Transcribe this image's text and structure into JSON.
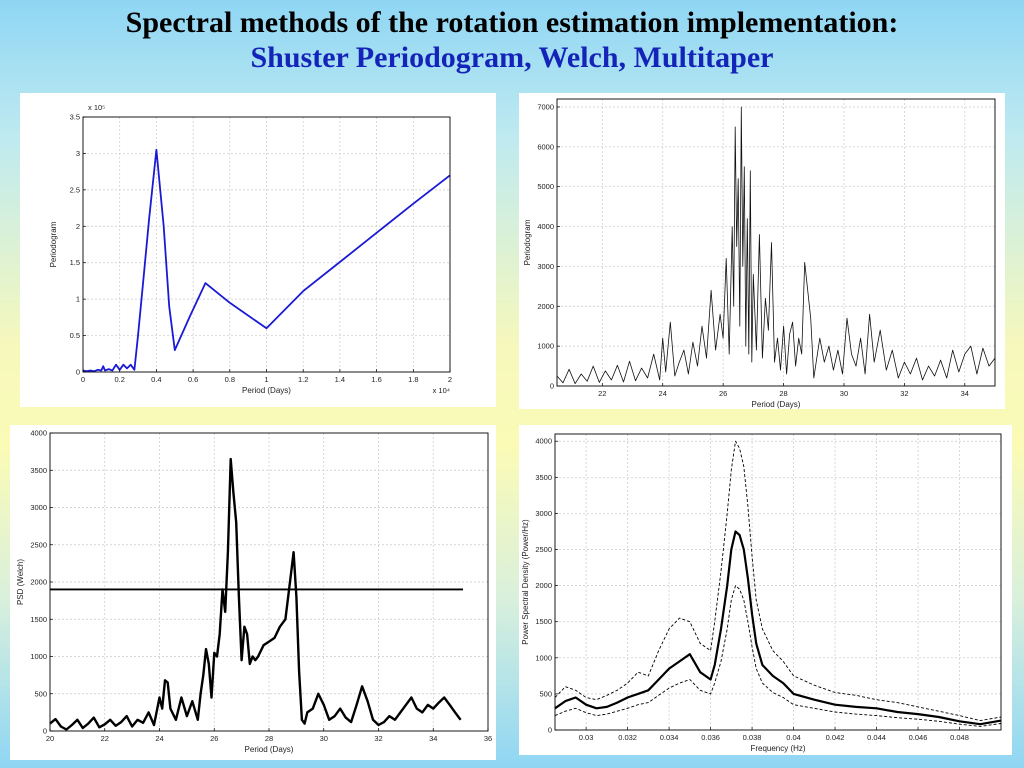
{
  "header": {
    "title": "Spectral methods of the rotation estimation implementation:",
    "subtitle": "Shuster Periodogram, Welch, Multitaper"
  },
  "chart_data": [
    {
      "id": "p1",
      "type": "line",
      "xlabel": "Period (Days)",
      "ylabel": "Periodogram",
      "x_multiplier": "x 10⁴",
      "y_multiplier": "x 10⁵",
      "xlim": [
        0,
        2
      ],
      "ylim": [
        0,
        3.5
      ],
      "xticks": [
        0,
        0.2,
        0.4,
        0.6,
        0.8,
        1,
        1.2,
        1.4,
        1.6,
        1.8,
        2
      ],
      "yticks": [
        0,
        0.5,
        1,
        1.5,
        2,
        2.5,
        3,
        3.5
      ],
      "grid": true,
      "series": [
        {
          "color": "#1a1ad6",
          "line_width": 1.8,
          "x": [
            0.0,
            0.02,
            0.04,
            0.06,
            0.08,
            0.1,
            0.11,
            0.12,
            0.14,
            0.16,
            0.18,
            0.2,
            0.22,
            0.24,
            0.26,
            0.28,
            0.3,
            0.33,
            0.36,
            0.4,
            0.44,
            0.47,
            0.5,
            0.58,
            0.667,
            0.8,
            1.0,
            1.2,
            1.4,
            1.6,
            1.8,
            2.0
          ],
          "y": [
            0.02,
            0.01,
            0.02,
            0.01,
            0.03,
            0.02,
            0.08,
            0.02,
            0.04,
            0.02,
            0.1,
            0.03,
            0.1,
            0.05,
            0.1,
            0.03,
            0.5,
            1.3,
            2.1,
            3.05,
            2.0,
            0.9,
            0.3,
            0.75,
            1.22,
            0.95,
            0.6,
            1.11,
            1.51,
            1.91,
            2.31,
            2.7
          ]
        }
      ]
    },
    {
      "id": "p2",
      "type": "line",
      "xlabel": "Period (Days)",
      "ylabel": "Periodogram",
      "xlim": [
        20.5,
        35
      ],
      "ylim": [
        0,
        7200
      ],
      "xticks": [
        22,
        24,
        26,
        28,
        30,
        32,
        34
      ],
      "yticks": [
        0,
        1000,
        2000,
        3000,
        4000,
        5000,
        6000,
        7000
      ],
      "grid": true,
      "series": [
        {
          "color": "#111111",
          "line_width": 0.8,
          "x": [
            20.5,
            20.7,
            20.9,
            21.1,
            21.3,
            21.5,
            21.7,
            21.9,
            22.1,
            22.3,
            22.5,
            22.7,
            22.9,
            23.1,
            23.3,
            23.5,
            23.7,
            23.9,
            24.0,
            24.1,
            24.25,
            24.4,
            24.55,
            24.7,
            24.85,
            25.0,
            25.15,
            25.3,
            25.45,
            25.6,
            25.75,
            25.9,
            26.0,
            26.1,
            26.2,
            26.3,
            26.35,
            26.4,
            26.45,
            26.5,
            26.55,
            26.6,
            26.65,
            26.7,
            26.75,
            26.8,
            26.85,
            26.9,
            26.95,
            27.0,
            27.1,
            27.2,
            27.3,
            27.4,
            27.5,
            27.6,
            27.7,
            27.8,
            27.9,
            28.0,
            28.1,
            28.2,
            28.3,
            28.4,
            28.5,
            28.6,
            28.7,
            28.8,
            28.9,
            29.0,
            29.1,
            29.2,
            29.35,
            29.5,
            29.65,
            29.8,
            29.95,
            30.1,
            30.25,
            30.4,
            30.55,
            30.7,
            30.85,
            31.0,
            31.2,
            31.4,
            31.6,
            31.8,
            32.0,
            32.2,
            32.4,
            32.6,
            32.8,
            33.0,
            33.2,
            33.4,
            33.6,
            33.8,
            34.0,
            34.2,
            34.4,
            34.6,
            34.8,
            35.0
          ],
          "y": [
            250,
            80,
            420,
            60,
            300,
            120,
            500,
            90,
            380,
            150,
            520,
            100,
            620,
            130,
            450,
            200,
            800,
            150,
            1200,
            350,
            1600,
            250,
            600,
            900,
            300,
            1100,
            500,
            1500,
            700,
            2400,
            900,
            1800,
            1200,
            3200,
            800,
            4000,
            2000,
            6500,
            3500,
            5200,
            1500,
            7000,
            3000,
            5500,
            1000,
            4200,
            800,
            5400,
            600,
            2800,
            900,
            3800,
            700,
            2200,
            1400,
            3600,
            600,
            1200,
            400,
            1500,
            300,
            1300,
            1600,
            500,
            1200,
            800,
            3100,
            2400,
            1700,
            200,
            700,
            1200,
            600,
            1000,
            400,
            900,
            300,
            1700,
            800,
            500,
            1200,
            300,
            1800,
            600,
            1400,
            400,
            900,
            200,
            600,
            300,
            700,
            150,
            500,
            250,
            650,
            200,
            900,
            350,
            800,
            1000,
            300,
            950,
            500,
            700
          ]
        }
      ]
    },
    {
      "id": "p3",
      "type": "line",
      "xlabel": "Period (Days)",
      "ylabel": "PSD (Welch)",
      "xlim": [
        20,
        36
      ],
      "ylim": [
        0,
        4000
      ],
      "xticks": [
        20,
        22,
        24,
        26,
        28,
        30,
        32,
        34,
        36
      ],
      "yticks": [
        0,
        500,
        1000,
        1500,
        2000,
        2500,
        3000,
        3500,
        4000
      ],
      "grid": true,
      "threshold": 1900,
      "series": [
        {
          "color": "#000000",
          "line_width": 2.4,
          "x": [
            20.0,
            20.2,
            20.4,
            20.6,
            20.8,
            21.0,
            21.2,
            21.4,
            21.6,
            21.8,
            22.0,
            22.2,
            22.4,
            22.6,
            22.8,
            23.0,
            23.2,
            23.4,
            23.6,
            23.8,
            24.0,
            24.1,
            24.2,
            24.3,
            24.4,
            24.6,
            24.8,
            25.0,
            25.2,
            25.4,
            25.5,
            25.6,
            25.7,
            25.8,
            25.9,
            26.0,
            26.1,
            26.2,
            26.3,
            26.4,
            26.5,
            26.6,
            26.7,
            26.8,
            26.9,
            27.0,
            27.1,
            27.2,
            27.3,
            27.4,
            27.5,
            27.6,
            27.8,
            28.0,
            28.2,
            28.4,
            28.6,
            28.8,
            28.9,
            29.0,
            29.1,
            29.2,
            29.3,
            29.4,
            29.6,
            29.8,
            30.0,
            30.2,
            30.4,
            30.6,
            30.8,
            31.0,
            31.2,
            31.4,
            31.6,
            31.8,
            32.0,
            32.2,
            32.4,
            32.6,
            32.8,
            33.0,
            33.2,
            33.4,
            33.6,
            33.8,
            34.0,
            34.2,
            34.4,
            34.6,
            34.8,
            35.0
          ],
          "y": [
            100,
            160,
            60,
            20,
            80,
            150,
            40,
            100,
            180,
            50,
            90,
            150,
            70,
            120,
            200,
            60,
            150,
            110,
            250,
            80,
            450,
            300,
            680,
            650,
            300,
            150,
            450,
            200,
            400,
            150,
            500,
            750,
            1100,
            900,
            450,
            1050,
            1000,
            1300,
            1900,
            1600,
            2400,
            3650,
            3200,
            2800,
            1800,
            950,
            1400,
            1300,
            900,
            1000,
            950,
            1000,
            1150,
            1200,
            1250,
            1400,
            1500,
            2100,
            2400,
            1800,
            800,
            150,
            100,
            250,
            300,
            500,
            350,
            150,
            200,
            300,
            180,
            120,
            350,
            600,
            400,
            150,
            80,
            120,
            200,
            150,
            250,
            350,
            450,
            300,
            250,
            350,
            300,
            380,
            450,
            350,
            250,
            150
          ]
        }
      ]
    },
    {
      "id": "p4",
      "type": "line",
      "xlabel": "Frequency (Hz)",
      "ylabel": "Power Spectral Density (Power/Hz)",
      "xlim": [
        0.0285,
        0.05
      ],
      "ylim": [
        0,
        4100
      ],
      "xticks": [
        0.03,
        0.032,
        0.034,
        0.036,
        0.038,
        0.04,
        0.042,
        0.044,
        0.046,
        0.048
      ],
      "yticks": [
        0,
        500,
        1000,
        1500,
        2000,
        2500,
        3000,
        3500,
        4000
      ],
      "grid": true,
      "series": [
        {
          "color": "#000000",
          "line_width": 2.2,
          "x": [
            0.0285,
            0.029,
            0.0295,
            0.03,
            0.0305,
            0.031,
            0.0315,
            0.032,
            0.0325,
            0.033,
            0.0335,
            0.034,
            0.0345,
            0.035,
            0.0355,
            0.036,
            0.0362,
            0.0365,
            0.0368,
            0.037,
            0.0372,
            0.0374,
            0.0376,
            0.0378,
            0.038,
            0.0382,
            0.0385,
            0.039,
            0.0395,
            0.04,
            0.041,
            0.042,
            0.043,
            0.044,
            0.045,
            0.046,
            0.047,
            0.048,
            0.049,
            0.05
          ],
          "y": [
            300,
            400,
            450,
            350,
            300,
            320,
            380,
            450,
            500,
            550,
            700,
            850,
            950,
            1050,
            800,
            700,
            900,
            1400,
            2000,
            2500,
            2750,
            2700,
            2500,
            2100,
            1600,
            1200,
            900,
            750,
            650,
            500,
            420,
            350,
            320,
            300,
            250,
            220,
            180,
            120,
            80,
            130
          ]
        },
        {
          "color": "#000000",
          "line_width": 0.9,
          "dashed": true,
          "x": [
            0.0285,
            0.029,
            0.0295,
            0.03,
            0.0305,
            0.031,
            0.0315,
            0.032,
            0.0325,
            0.033,
            0.0335,
            0.034,
            0.0345,
            0.035,
            0.0355,
            0.036,
            0.0362,
            0.0365,
            0.0368,
            0.037,
            0.0372,
            0.0374,
            0.0376,
            0.0378,
            0.038,
            0.0382,
            0.0385,
            0.039,
            0.0395,
            0.04,
            0.041,
            0.042,
            0.043,
            0.044,
            0.045,
            0.046,
            0.047,
            0.048,
            0.049,
            0.05
          ],
          "y": [
            450,
            600,
            550,
            450,
            420,
            480,
            550,
            650,
            800,
            750,
            1100,
            1400,
            1550,
            1500,
            1200,
            1100,
            1500,
            2200,
            3000,
            3600,
            4000,
            3900,
            3650,
            3100,
            2400,
            1800,
            1400,
            1100,
            950,
            750,
            620,
            520,
            480,
            420,
            380,
            320,
            260,
            200,
            130,
            180
          ]
        },
        {
          "color": "#000000",
          "line_width": 0.9,
          "dashed": true,
          "x": [
            0.0285,
            0.029,
            0.0295,
            0.03,
            0.0305,
            0.031,
            0.0315,
            0.032,
            0.0325,
            0.033,
            0.0335,
            0.034,
            0.0345,
            0.035,
            0.0355,
            0.036,
            0.0362,
            0.0365,
            0.0368,
            0.037,
            0.0372,
            0.0374,
            0.0376,
            0.0378,
            0.038,
            0.0382,
            0.0385,
            0.039,
            0.0395,
            0.04,
            0.041,
            0.042,
            0.043,
            0.044,
            0.045,
            0.046,
            0.047,
            0.048,
            0.049,
            0.05
          ],
          "y": [
            200,
            260,
            300,
            240,
            200,
            220,
            260,
            300,
            350,
            380,
            480,
            580,
            650,
            700,
            550,
            500,
            650,
            950,
            1400,
            1800,
            2000,
            1950,
            1800,
            1500,
            1150,
            850,
            650,
            520,
            450,
            350,
            300,
            250,
            220,
            200,
            170,
            150,
            120,
            80,
            50,
            90
          ]
        }
      ]
    }
  ]
}
